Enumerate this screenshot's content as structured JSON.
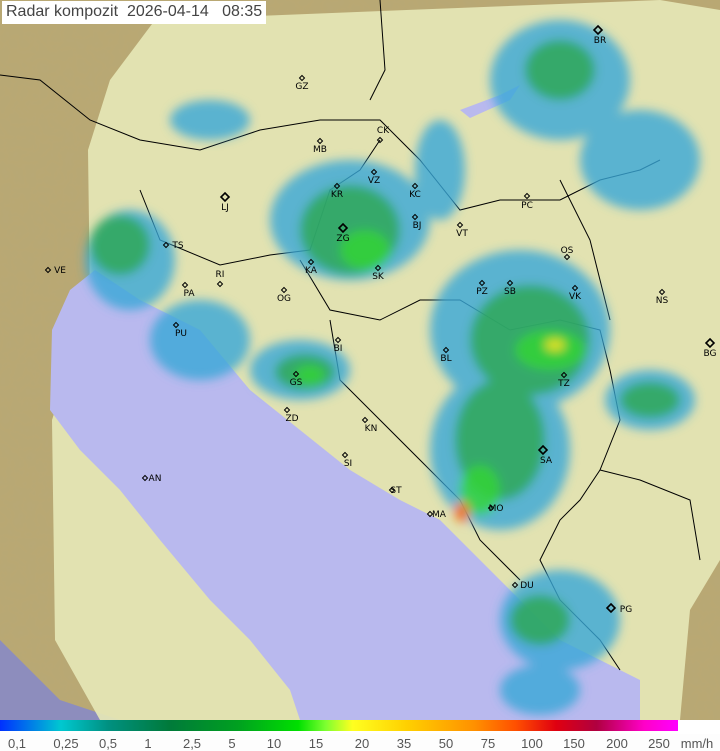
{
  "title": {
    "product": "Radar kompozit",
    "date": "2026-04-14",
    "time": "08:35"
  },
  "map": {
    "colors": {
      "terrain": "#b9a873",
      "coverage": "#e7e8b8",
      "sea": "#b9b9ee",
      "border": "#000000",
      "rain_light": "#33a8d8",
      "rain_mid": "#2fa858",
      "rain_heavy": "#33d633",
      "rain_max": "#f07010"
    },
    "cities": [
      {
        "code": "GZ"
      },
      {
        "code": "MB"
      },
      {
        "code": "CK"
      },
      {
        "code": "VZ"
      },
      {
        "code": "KR"
      },
      {
        "code": "LJ"
      },
      {
        "code": "KC"
      },
      {
        "code": "PC"
      },
      {
        "code": "BJ"
      },
      {
        "code": "ZG"
      },
      {
        "code": "VT"
      },
      {
        "code": "TS"
      },
      {
        "code": "RI"
      },
      {
        "code": "KA"
      },
      {
        "code": "SK"
      },
      {
        "code": "OS"
      },
      {
        "code": "PA"
      },
      {
        "code": "PZ"
      },
      {
        "code": "SB"
      },
      {
        "code": "VK"
      },
      {
        "code": "NS"
      },
      {
        "code": "OG"
      },
      {
        "code": "PU"
      },
      {
        "code": "BI"
      },
      {
        "code": "BL"
      },
      {
        "code": "BG"
      },
      {
        "code": "GS"
      },
      {
        "code": "TZ"
      },
      {
        "code": "ZD"
      },
      {
        "code": "KN"
      },
      {
        "code": "SA"
      },
      {
        "code": "SI"
      },
      {
        "code": "VE"
      },
      {
        "code": "AN"
      },
      {
        "code": "ST"
      },
      {
        "code": "MA"
      },
      {
        "code": "MO"
      },
      {
        "code": "DU"
      },
      {
        "code": "PG"
      },
      {
        "code": "BR"
      }
    ]
  },
  "legend": {
    "unit": "mm/h",
    "values": [
      "0,1",
      "0,25",
      "0,5",
      "1",
      "2,5",
      "5",
      "10",
      "15",
      "20",
      "35",
      "50",
      "75",
      "100",
      "150",
      "200",
      "250"
    ]
  }
}
